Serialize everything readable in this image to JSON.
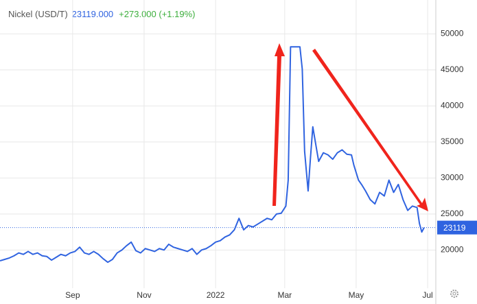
{
  "chart_data": {
    "type": "line",
    "title": "Nickel (USD/T)",
    "price": "23119.000",
    "change": "+273.000 (+1.19%)",
    "last_value": 23119,
    "x": [
      0,
      4,
      8,
      12,
      16,
      20,
      24,
      28,
      32,
      36,
      40,
      44,
      48,
      52,
      56,
      60,
      64,
      68,
      72,
      76,
      80,
      84,
      88,
      92,
      96,
      100,
      104,
      108,
      112,
      116,
      120,
      124,
      128,
      132,
      136,
      140,
      144,
      148,
      152,
      156,
      160,
      164,
      168,
      172,
      176,
      180,
      184,
      188,
      192,
      196,
      200,
      204,
      208,
      212,
      216,
      220,
      224,
      228,
      232,
      236,
      240,
      244,
      246,
      248,
      252,
      256,
      258,
      260,
      263,
      265,
      267,
      270,
      272,
      274,
      276,
      280,
      284,
      288,
      292,
      296,
      300,
      302,
      306,
      309,
      312,
      316,
      320,
      324,
      328,
      332,
      336,
      340,
      344,
      348,
      352,
      356,
      358,
      360,
      362
    ],
    "series": [
      {
        "name": "Nickel",
        "color": "#2f63e0",
        "values": [
          18500,
          18700,
          18900,
          19200,
          19600,
          19400,
          19800,
          19400,
          19600,
          19200,
          19100,
          18600,
          19000,
          19400,
          19200,
          19600,
          19800,
          20400,
          19600,
          19400,
          19800,
          19400,
          18800,
          18300,
          18700,
          19600,
          20000,
          20600,
          21100,
          19900,
          19600,
          20200,
          20000,
          19800,
          20200,
          20000,
          20800,
          20400,
          20200,
          20000,
          19800,
          20200,
          19400,
          20000,
          20200,
          20600,
          21100,
          21300,
          21800,
          22100,
          22800,
          24400,
          22800,
          23400,
          23200,
          23600,
          24000,
          24400,
          24200,
          25000,
          25100,
          26100,
          29700,
          48200,
          48200,
          48200,
          45100,
          33700,
          28200,
          32800,
          37100,
          34200,
          32300,
          32900,
          33500,
          33200,
          32600,
          33500,
          33900,
          33300,
          33200,
          31800,
          29700,
          29000,
          28200,
          27000,
          26400,
          28000,
          27500,
          29700,
          28000,
          29100,
          27000,
          25500,
          26100,
          25900,
          23700,
          22500,
          23119
        ]
      }
    ],
    "xlim": [
      0,
      372
    ],
    "xticks": [
      {
        "value": 62,
        "label": "Sep"
      },
      {
        "value": 123,
        "label": "Nov"
      },
      {
        "value": 184,
        "label": "2022"
      },
      {
        "value": 243,
        "label": "Mar"
      },
      {
        "value": 304,
        "label": "May"
      },
      {
        "value": 365,
        "label": "Jul"
      }
    ],
    "ylim": [
      14700,
      54700
    ],
    "yticks": [
      20000,
      25000,
      30000,
      35000,
      40000,
      45000,
      50000
    ],
    "grid": true
  }
}
